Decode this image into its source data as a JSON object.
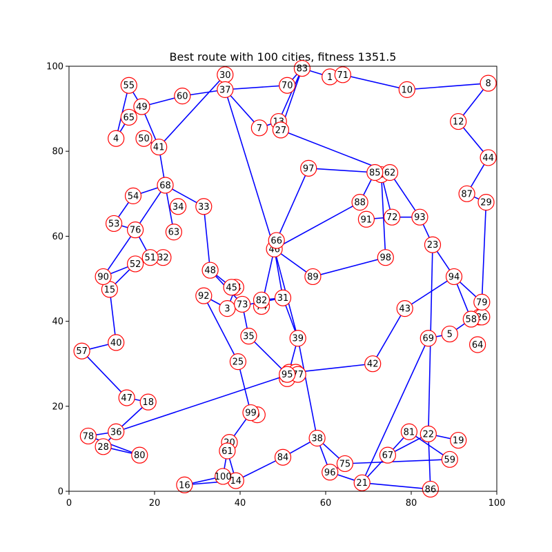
{
  "chart_data": {
    "type": "scatter",
    "title": "Best route with 100 cities, fitness 1351.5",
    "xlabel": "",
    "ylabel": "",
    "xlim": [
      0,
      100
    ],
    "ylim": [
      0,
      100
    ],
    "xticks": [
      0,
      20,
      40,
      60,
      80,
      100
    ],
    "yticks": [
      0,
      20,
      40,
      60,
      80,
      100
    ],
    "grid": false,
    "colors": {
      "route": "#0000ff",
      "marker_edge": "#ff0000",
      "marker_face": "#ffffff",
      "text": "#000000",
      "axes": "#000000"
    },
    "cities": [
      {
        "id": "1",
        "x": 61,
        "y": 97.5
      },
      {
        "id": "2",
        "x": 96,
        "y": 41
      },
      {
        "id": "3",
        "x": 37,
        "y": 43
      },
      {
        "id": "4",
        "x": 11,
        "y": 83
      },
      {
        "id": "5",
        "x": 89,
        "y": 37
      },
      {
        "id": "6",
        "x": 73,
        "y": 74.5
      },
      {
        "id": "7",
        "x": 44.5,
        "y": 85.5
      },
      {
        "id": "8",
        "x": 98,
        "y": 96
      },
      {
        "id": "9",
        "x": 44,
        "y": 18
      },
      {
        "id": "10",
        "x": 79,
        "y": 94.5
      },
      {
        "id": "11",
        "x": 51.5,
        "y": 28
      },
      {
        "id": "12",
        "x": 91,
        "y": 87
      },
      {
        "id": "13",
        "x": 49,
        "y": 87
      },
      {
        "id": "14",
        "x": 39,
        "y": 2.5
      },
      {
        "id": "15",
        "x": 9.5,
        "y": 47.5
      },
      {
        "id": "16",
        "x": 27,
        "y": 1.5
      },
      {
        "id": "17",
        "x": 53,
        "y": 28
      },
      {
        "id": "18",
        "x": 18.5,
        "y": 21
      },
      {
        "id": "19",
        "x": 91,
        "y": 12
      },
      {
        "id": "20",
        "x": 37.5,
        "y": 11.5
      },
      {
        "id": "21",
        "x": 68.5,
        "y": 2
      },
      {
        "id": "22",
        "x": 84,
        "y": 13.5
      },
      {
        "id": "23",
        "x": 85,
        "y": 58
      },
      {
        "id": "24",
        "x": 39,
        "y": 48
      },
      {
        "id": "25",
        "x": 39.5,
        "y": 30.5
      },
      {
        "id": "26",
        "x": 96.5,
        "y": 41
      },
      {
        "id": "27",
        "x": 49.5,
        "y": 85
      },
      {
        "id": "28",
        "x": 8,
        "y": 10.5
      },
      {
        "id": "29",
        "x": 97.5,
        "y": 68
      },
      {
        "id": "30",
        "x": 36.5,
        "y": 98
      },
      {
        "id": "31",
        "x": 50,
        "y": 45.5
      },
      {
        "id": "32",
        "x": 22,
        "y": 55
      },
      {
        "id": "33",
        "x": 31.5,
        "y": 67
      },
      {
        "id": "34",
        "x": 25.5,
        "y": 67
      },
      {
        "id": "35",
        "x": 42,
        "y": 36.5
      },
      {
        "id": "36",
        "x": 11,
        "y": 14
      },
      {
        "id": "37",
        "x": 36.5,
        "y": 94.5
      },
      {
        "id": "38",
        "x": 58,
        "y": 12.5
      },
      {
        "id": "39",
        "x": 53.5,
        "y": 36
      },
      {
        "id": "40",
        "x": 11,
        "y": 35
      },
      {
        "id": "41",
        "x": 21,
        "y": 81
      },
      {
        "id": "42",
        "x": 71,
        "y": 30
      },
      {
        "id": "43",
        "x": 78.5,
        "y": 43
      },
      {
        "id": "44",
        "x": 98,
        "y": 78.5
      },
      {
        "id": "45",
        "x": 38,
        "y": 48
      },
      {
        "id": "46",
        "x": 48,
        "y": 57
      },
      {
        "id": "47",
        "x": 13.5,
        "y": 22
      },
      {
        "id": "48",
        "x": 33,
        "y": 52
      },
      {
        "id": "49",
        "x": 17,
        "y": 90.5
      },
      {
        "id": "50",
        "x": 17.5,
        "y": 83
      },
      {
        "id": "51",
        "x": 19,
        "y": 55
      },
      {
        "id": "52",
        "x": 15.5,
        "y": 53.5
      },
      {
        "id": "53",
        "x": 10.5,
        "y": 63
      },
      {
        "id": "54",
        "x": 15,
        "y": 69.5
      },
      {
        "id": "55",
        "x": 14,
        "y": 95.5
      },
      {
        "id": "56",
        "x": 51,
        "y": 26.5
      },
      {
        "id": "57",
        "x": 3,
        "y": 33
      },
      {
        "id": "58",
        "x": 94,
        "y": 40.5
      },
      {
        "id": "59",
        "x": 89,
        "y": 7.5
      },
      {
        "id": "60",
        "x": 26.5,
        "y": 93
      },
      {
        "id": "61",
        "x": 37,
        "y": 9.5
      },
      {
        "id": "62",
        "x": 75,
        "y": 75
      },
      {
        "id": "63",
        "x": 24.5,
        "y": 61
      },
      {
        "id": "64",
        "x": 95.5,
        "y": 34.5
      },
      {
        "id": "65",
        "x": 14,
        "y": 88
      },
      {
        "id": "66",
        "x": 48.5,
        "y": 59
      },
      {
        "id": "67",
        "x": 74.5,
        "y": 8.5
      },
      {
        "id": "68",
        "x": 22.5,
        "y": 72
      },
      {
        "id": "69",
        "x": 84,
        "y": 36
      },
      {
        "id": "70",
        "x": 51,
        "y": 95.5
      },
      {
        "id": "71",
        "x": 64,
        "y": 98
      },
      {
        "id": "72",
        "x": 75.5,
        "y": 64.5
      },
      {
        "id": "73",
        "x": 40.5,
        "y": 44
      },
      {
        "id": "74",
        "x": 45,
        "y": 43.5
      },
      {
        "id": "75",
        "x": 64.5,
        "y": 6.5
      },
      {
        "id": "76",
        "x": 15.5,
        "y": 61.5
      },
      {
        "id": "77",
        "x": 53.5,
        "y": 27.5
      },
      {
        "id": "78",
        "x": 4.5,
        "y": 13
      },
      {
        "id": "79",
        "x": 96.5,
        "y": 44.5
      },
      {
        "id": "80",
        "x": 16.5,
        "y": 8.5
      },
      {
        "id": "81",
        "x": 79.5,
        "y": 14
      },
      {
        "id": "82",
        "x": 45,
        "y": 45
      },
      {
        "id": "83",
        "x": 54.5,
        "y": 99.5
      },
      {
        "id": "84",
        "x": 50,
        "y": 8
      },
      {
        "id": "85",
        "x": 71.5,
        "y": 75
      },
      {
        "id": "86",
        "x": 84.5,
        "y": 0.5
      },
      {
        "id": "87",
        "x": 93,
        "y": 70
      },
      {
        "id": "88",
        "x": 68,
        "y": 68
      },
      {
        "id": "89",
        "x": 57,
        "y": 50.5
      },
      {
        "id": "90",
        "x": 8,
        "y": 50.5
      },
      {
        "id": "91",
        "x": 69.5,
        "y": 64
      },
      {
        "id": "92",
        "x": 31.5,
        "y": 46
      },
      {
        "id": "93",
        "x": 82,
        "y": 64.5
      },
      {
        "id": "94",
        "x": 90,
        "y": 50.5
      },
      {
        "id": "95",
        "x": 51,
        "y": 27.5
      },
      {
        "id": "96",
        "x": 61,
        "y": 4.5
      },
      {
        "id": "97",
        "x": 56,
        "y": 76
      },
      {
        "id": "98",
        "x": 74,
        "y": 55
      },
      {
        "id": "99",
        "x": 42.5,
        "y": 18.5
      },
      {
        "id": "100",
        "x": 36,
        "y": 3.5
      }
    ],
    "route": [
      [
        2,
        26
      ],
      [
        26,
        79
      ],
      [
        79,
        29
      ],
      [
        29,
        87
      ],
      [
        87,
        44
      ],
      [
        44,
        12
      ],
      [
        12,
        8
      ],
      [
        8,
        10
      ],
      [
        10,
        71
      ],
      [
        71,
        1
      ],
      [
        1,
        83
      ],
      [
        83,
        13
      ],
      [
        13,
        7
      ],
      [
        7,
        37
      ],
      [
        37,
        30
      ],
      [
        30,
        41
      ],
      [
        41,
        49
      ],
      [
        49,
        55
      ],
      [
        55,
        4
      ],
      [
        4,
        65
      ],
      [
        65,
        49
      ],
      [
        49,
        60
      ],
      [
        60,
        37
      ],
      [
        37,
        70
      ],
      [
        70,
        83
      ],
      [
        83,
        27
      ],
      [
        27,
        62
      ],
      [
        62,
        93
      ],
      [
        93,
        23
      ],
      [
        23,
        94
      ],
      [
        94,
        58
      ],
      [
        58,
        5
      ],
      [
        5,
        69
      ],
      [
        69,
        21
      ],
      [
        21,
        96
      ],
      [
        96,
        75
      ],
      [
        75,
        59
      ],
      [
        59,
        81
      ],
      [
        81,
        67
      ],
      [
        67,
        22
      ],
      [
        22,
        19
      ],
      [
        22,
        86
      ],
      [
        86,
        21
      ],
      [
        21,
        67
      ],
      [
        23,
        22
      ],
      [
        94,
        79
      ],
      [
        94,
        43
      ],
      [
        43,
        42
      ],
      [
        42,
        17
      ],
      [
        17,
        36
      ],
      [
        36,
        78
      ],
      [
        78,
        80
      ],
      [
        36,
        28
      ],
      [
        28,
        80
      ],
      [
        18,
        47
      ],
      [
        47,
        57
      ],
      [
        57,
        40
      ],
      [
        40,
        15
      ],
      [
        15,
        52
      ],
      [
        52,
        32
      ],
      [
        32,
        51
      ],
      [
        51,
        76
      ],
      [
        76,
        53
      ],
      [
        53,
        54
      ],
      [
        54,
        68
      ],
      [
        68,
        41
      ],
      [
        41,
        50
      ],
      [
        68,
        76
      ],
      [
        76,
        90
      ],
      [
        90,
        52
      ],
      [
        90,
        15
      ],
      [
        68,
        63
      ],
      [
        68,
        33
      ],
      [
        33,
        48
      ],
      [
        48,
        45
      ],
      [
        45,
        24
      ],
      [
        24,
        3
      ],
      [
        3,
        92
      ],
      [
        92,
        25
      ],
      [
        25,
        99
      ],
      [
        99,
        9
      ],
      [
        99,
        20
      ],
      [
        20,
        61
      ],
      [
        61,
        100
      ],
      [
        100,
        14
      ],
      [
        14,
        84
      ],
      [
        84,
        38
      ],
      [
        38,
        75
      ],
      [
        38,
        96
      ],
      [
        38,
        39
      ],
      [
        39,
        46
      ],
      [
        46,
        88
      ],
      [
        88,
        85
      ],
      [
        85,
        62
      ],
      [
        85,
        97
      ],
      [
        97,
        66
      ],
      [
        66,
        46
      ],
      [
        46,
        89
      ],
      [
        89,
        98
      ],
      [
        98,
        6
      ],
      [
        6,
        72
      ],
      [
        72,
        91
      ],
      [
        72,
        93
      ],
      [
        46,
        74
      ],
      [
        74,
        82
      ],
      [
        82,
        31
      ],
      [
        31,
        39
      ],
      [
        31,
        3
      ],
      [
        37,
        46
      ],
      [
        46,
        31
      ],
      [
        48,
        73
      ],
      [
        73,
        35
      ],
      [
        35,
        95
      ],
      [
        95,
        11
      ],
      [
        11,
        77
      ],
      [
        77,
        17
      ],
      [
        56,
        11
      ],
      [
        39,
        56
      ],
      [
        100,
        16
      ],
      [
        16,
        14
      ],
      [
        61,
        14
      ],
      [
        18,
        36
      ]
    ]
  }
}
